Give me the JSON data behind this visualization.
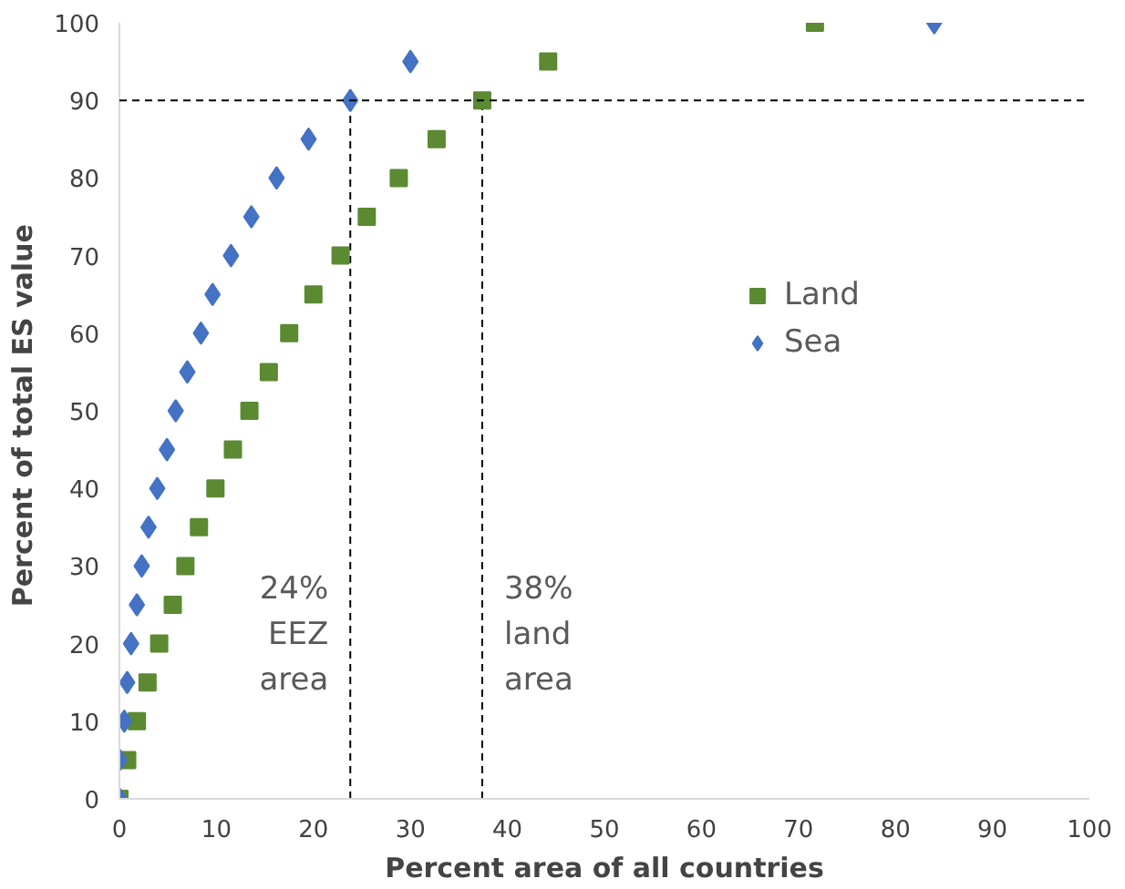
{
  "chart_data": {
    "type": "scatter",
    "xlabel": "Percent area of all countries",
    "ylabel": "Percent of total  ES value",
    "xlim": [
      0,
      100
    ],
    "ylim": [
      0,
      100
    ],
    "xticks": [
      0,
      10,
      20,
      30,
      40,
      50,
      60,
      70,
      80,
      90,
      100
    ],
    "yticks": [
      0,
      10,
      20,
      30,
      40,
      50,
      60,
      70,
      80,
      90,
      100
    ],
    "grid": false,
    "legend": "right",
    "series": [
      {
        "name": "Land",
        "color": "#5b8a32",
        "marker": "square",
        "x": [
          0,
          0.8,
          1.8,
          2.9,
          4.1,
          5.5,
          6.8,
          8.2,
          9.9,
          11.7,
          13.4,
          15.4,
          17.5,
          20,
          22.8,
          25.5,
          28.8,
          32.7,
          37.4,
          44.2,
          71.7
        ],
        "values": [
          0,
          5,
          10,
          15,
          20,
          25,
          30,
          35,
          40,
          45,
          50,
          55,
          60,
          65,
          70,
          75,
          80,
          85,
          90,
          95,
          100
        ]
      },
      {
        "name": "Sea",
        "color": "#4472c4",
        "marker": "diamond",
        "x": [
          0,
          0,
          0.5,
          0.8,
          1.2,
          1.8,
          2.3,
          3,
          3.9,
          4.9,
          5.8,
          7,
          8.4,
          9.6,
          11.5,
          13.6,
          16.2,
          19.5,
          23.8,
          30,
          84
        ],
        "values": [
          0,
          5,
          10,
          15,
          20,
          25,
          30,
          35,
          40,
          45,
          50,
          55,
          60,
          65,
          70,
          75,
          80,
          85,
          90,
          95,
          100
        ]
      }
    ],
    "ref_lines": [
      {
        "axis": "y",
        "value": 90,
        "line_style": "dashed",
        "color": "#000000"
      },
      {
        "axis": "x",
        "value": 23.8,
        "line_style": "dashed",
        "color": "#000000"
      },
      {
        "axis": "x",
        "value": 37.4,
        "line_style": "dashed",
        "color": "#000000"
      }
    ],
    "annotations": [
      "24%\nEEZ\narea",
      "38%\nland\narea"
    ]
  }
}
